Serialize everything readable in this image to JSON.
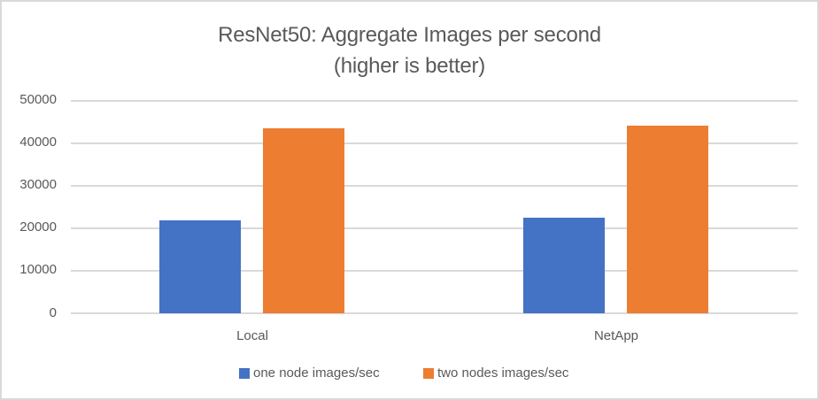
{
  "chart_data": {
    "type": "bar",
    "title": "ResNet50: Aggregate Images per second",
    "subtitle": "(higher is better)",
    "xlabel": "",
    "ylabel": "",
    "categories": [
      "Local",
      "NetApp"
    ],
    "series": [
      {
        "name": "one node images/sec",
        "color": "#4472c4",
        "values": [
          21800,
          22600
        ]
      },
      {
        "name": "two nodes images/sec",
        "color": "#ed7d31",
        "values": [
          43600,
          44100
        ]
      }
    ],
    "ylim": [
      0,
      50000
    ],
    "yticks": [
      "0",
      "10000",
      "20000",
      "30000",
      "40000",
      "50000"
    ],
    "grid": true,
    "legend_position": "bottom"
  },
  "colors": {
    "series_one": "#4472c4",
    "series_two": "#ed7d31",
    "gridline": "#d9d9d9",
    "text": "#595959",
    "border": "#d9d9d9"
  }
}
